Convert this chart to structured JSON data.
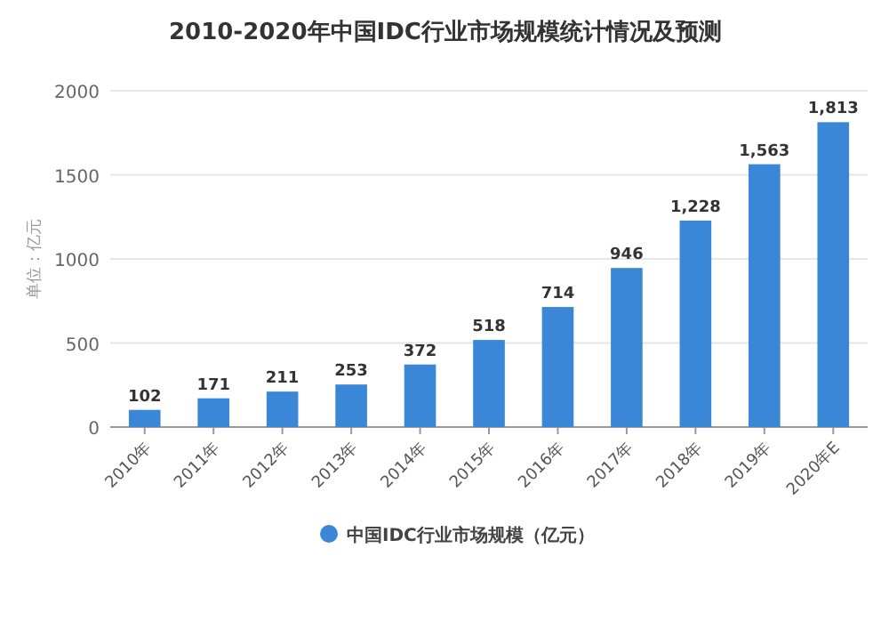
{
  "chart_data": {
    "type": "bar",
    "title": "2010-2020年中国IDC行业市场规模统计情况及预测",
    "ylabel": "单位：亿元",
    "categories": [
      "2010年",
      "2011年",
      "2012年",
      "2013年",
      "2014年",
      "2015年",
      "2016年",
      "2017年",
      "2018年",
      "2019年",
      "2020年E"
    ],
    "series": [
      {
        "name": "中国IDC行业市场规模（亿元）",
        "color": "#3a87d8",
        "values": [
          102,
          171,
          211,
          253,
          372,
          518,
          714,
          946,
          1228,
          1563,
          1813
        ],
        "value_labels": [
          "102",
          "171",
          "211",
          "253",
          "372",
          "518",
          "714",
          "946",
          "1,228",
          "1,563",
          "1,813"
        ]
      }
    ],
    "ylim": [
      0,
      2000
    ],
    "yticks": [
      0,
      500,
      1000,
      1500,
      2000
    ],
    "grid": "y",
    "legend": "bottom"
  }
}
